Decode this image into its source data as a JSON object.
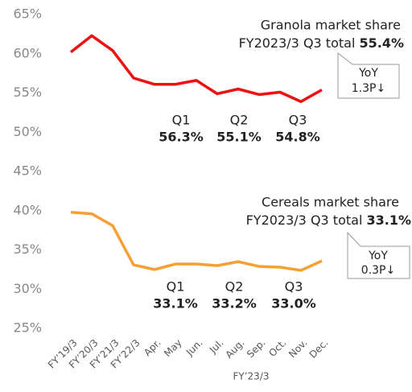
{
  "chart_data": {
    "type": "line",
    "categories": [
      "FY’19/3",
      "FY’20/3",
      "FY’21/3",
      "FY’22/3",
      "Apr.",
      "May",
      "Jun.",
      "Jul.",
      "Aug.",
      "Sep.",
      "Oct.",
      "Nov.",
      "Dec."
    ],
    "x_label": "FY’23/3",
    "series": [
      {
        "name": "Granola",
        "color": "#ee1111",
        "values": [
          60.2,
          62.3,
          60.4,
          56.9,
          56.1,
          56.1,
          56.6,
          54.9,
          55.5,
          54.8,
          55.1,
          53.9,
          55.4
        ]
      },
      {
        "name": "Cereals",
        "color": "#f5a033",
        "values": [
          39.8,
          39.6,
          38.1,
          33.1,
          32.5,
          33.2,
          33.2,
          33.0,
          33.5,
          32.9,
          32.8,
          32.4,
          33.6
        ]
      }
    ],
    "ylim": [
      25,
      65
    ],
    "yticks": [
      {
        "value": 25,
        "label": "25%"
      },
      {
        "value": 30,
        "label": "30%"
      },
      {
        "value": 35,
        "label": "35%"
      },
      {
        "value": 40,
        "label": "40%"
      },
      {
        "value": 45,
        "label": "45%"
      },
      {
        "value": 50,
        "label": "50%"
      },
      {
        "value": 55,
        "label": "55%"
      },
      {
        "value": 60,
        "label": "60%"
      },
      {
        "value": 65,
        "label": "65%"
      }
    ],
    "grid": false,
    "annotations": {
      "granola": {
        "title": "Granola market share",
        "total_label": "FY2023/3 Q3 total",
        "total": "55.4%",
        "yoy": "YoY",
        "yoy_value": "1.3P↓",
        "quarters": [
          {
            "q": "Q1",
            "v": "56.3%"
          },
          {
            "q": "Q2",
            "v": "55.1%"
          },
          {
            "q": "Q3",
            "v": "54.8%"
          }
        ]
      },
      "cereals": {
        "title": "Cereals market share",
        "total_label": "FY2023/3 Q3 total",
        "total": "33.1%",
        "yoy": "YoY",
        "yoy_value": "0.3P↓",
        "quarters": [
          {
            "q": "Q1",
            "v": "33.1%"
          },
          {
            "q": "Q2",
            "v": "33.2%"
          },
          {
            "q": "Q3",
            "v": "33.0%"
          }
        ]
      }
    }
  }
}
